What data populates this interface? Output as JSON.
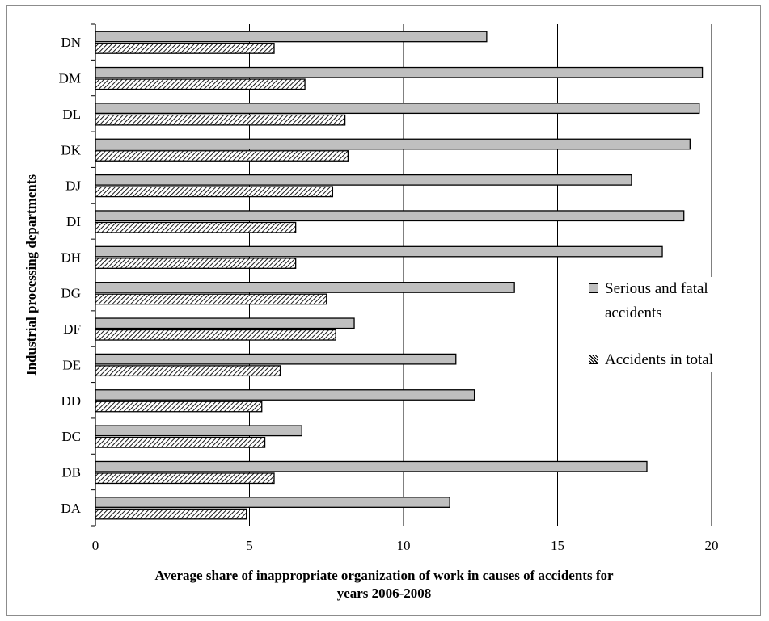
{
  "chart_data": {
    "type": "bar",
    "orientation": "horizontal",
    "categories": [
      "DA",
      "DB",
      "DC",
      "DD",
      "DE",
      "DF",
      "DG",
      "DH",
      "DI",
      "DJ",
      "DK",
      "DL",
      "DM",
      "DN"
    ],
    "series": [
      {
        "name": "Serious and fatal accidents",
        "color": "#bfbfbf",
        "pattern": "solid",
        "values": [
          11.5,
          17.9,
          6.7,
          12.3,
          11.7,
          8.4,
          13.6,
          18.4,
          19.1,
          17.4,
          19.3,
          19.6,
          19.7,
          12.7
        ]
      },
      {
        "name": "Accidents in total",
        "color": "#000000",
        "pattern": "hatched",
        "values": [
          4.9,
          5.8,
          5.5,
          5.4,
          6.0,
          7.8,
          7.5,
          6.5,
          6.5,
          7.7,
          8.2,
          8.1,
          6.8,
          5.8
        ]
      }
    ],
    "xlim": [
      0,
      20
    ],
    "xticks": [
      0,
      5,
      10,
      15,
      20
    ],
    "xlabel": "Average share of inappropriate organization of work in causes of accidents for years 2006-2008",
    "xlabel_lines": [
      "Average share of inappropriate organization of work in causes of accidents for",
      "years 2006-2008"
    ],
    "ylabel": "Industrial processing departments",
    "grid": "vertical",
    "legend_position": "right"
  }
}
